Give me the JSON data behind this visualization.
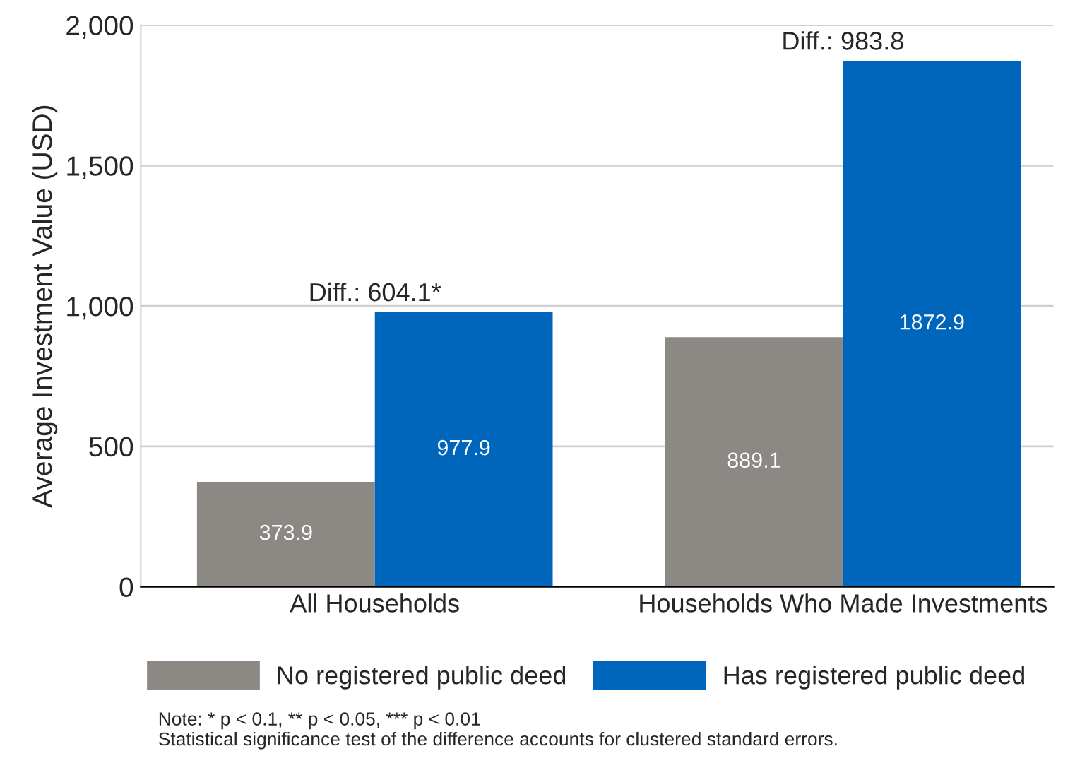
{
  "chart_data": {
    "type": "bar",
    "ylabel": "Average Investment Value (USD)",
    "categories": [
      "All Households",
      "Households Who Made Investments"
    ],
    "series": [
      {
        "name": "No registered public deed",
        "color": "#8c8984",
        "values": [
          373.9,
          889.1
        ]
      },
      {
        "name": "Has registered public deed",
        "color": "#0066bb",
        "values": [
          977.9,
          1872.9
        ]
      }
    ],
    "ylim": [
      0,
      2000
    ],
    "yticks": [
      0,
      {
        "value": 500,
        "label": "500"
      },
      {
        "value": 1000,
        "label": "1,000"
      },
      {
        "value": 1500,
        "label": "1,500"
      },
      {
        "value": 2000,
        "label": "2,000"
      }
    ],
    "grid": "y",
    "legend": "bottom",
    "data_labels": true,
    "annotations": [
      {
        "text": "Diff.: 604.1*",
        "x": "All Households",
        "y": 977.9
      },
      {
        "text": "Diff.: 983.8",
        "x": "Households Who Made Investments",
        "y": 1872.9
      },
      "Note: * p < 0.1, ** p < 0.05, *** p < 0.01\nStatistical significance test of the difference accounts for clustered standard errors."
    ]
  }
}
